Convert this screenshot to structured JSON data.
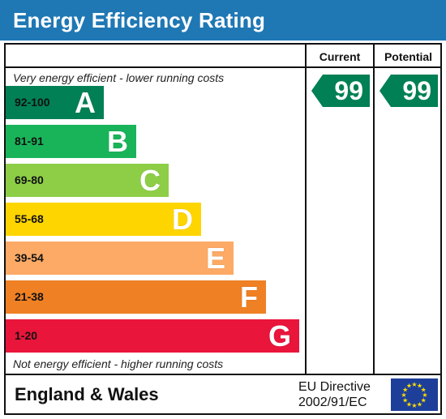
{
  "header": {
    "title": "Energy Efficiency Rating"
  },
  "columns": {
    "current": "Current",
    "potential": "Potential"
  },
  "notes": {
    "top": "Very energy efficient - lower running costs",
    "bottom": "Not energy efficient - higher running costs"
  },
  "bands": [
    {
      "range": "92-100",
      "letter": "A",
      "color": "#008054"
    },
    {
      "range": "81-91",
      "letter": "B",
      "color": "#19b459"
    },
    {
      "range": "69-80",
      "letter": "C",
      "color": "#8dce46"
    },
    {
      "range": "55-68",
      "letter": "D",
      "color": "#ffd500"
    },
    {
      "range": "39-54",
      "letter": "E",
      "color": "#fcaa65"
    },
    {
      "range": "21-38",
      "letter": "F",
      "color": "#ef8023"
    },
    {
      "range": "1-20",
      "letter": "G",
      "color": "#e9153b"
    }
  ],
  "ratings": {
    "current": {
      "value": "99",
      "color": "#008054"
    },
    "potential": {
      "value": "99",
      "color": "#008054"
    }
  },
  "footer": {
    "region": "England & Wales",
    "directive_line1": "EU Directive",
    "directive_line2": "2002/91/EC",
    "flag_icon": "eu-flag-icon",
    "flag_color": "#1d3f9a",
    "star_color": "#ffdd00"
  }
}
